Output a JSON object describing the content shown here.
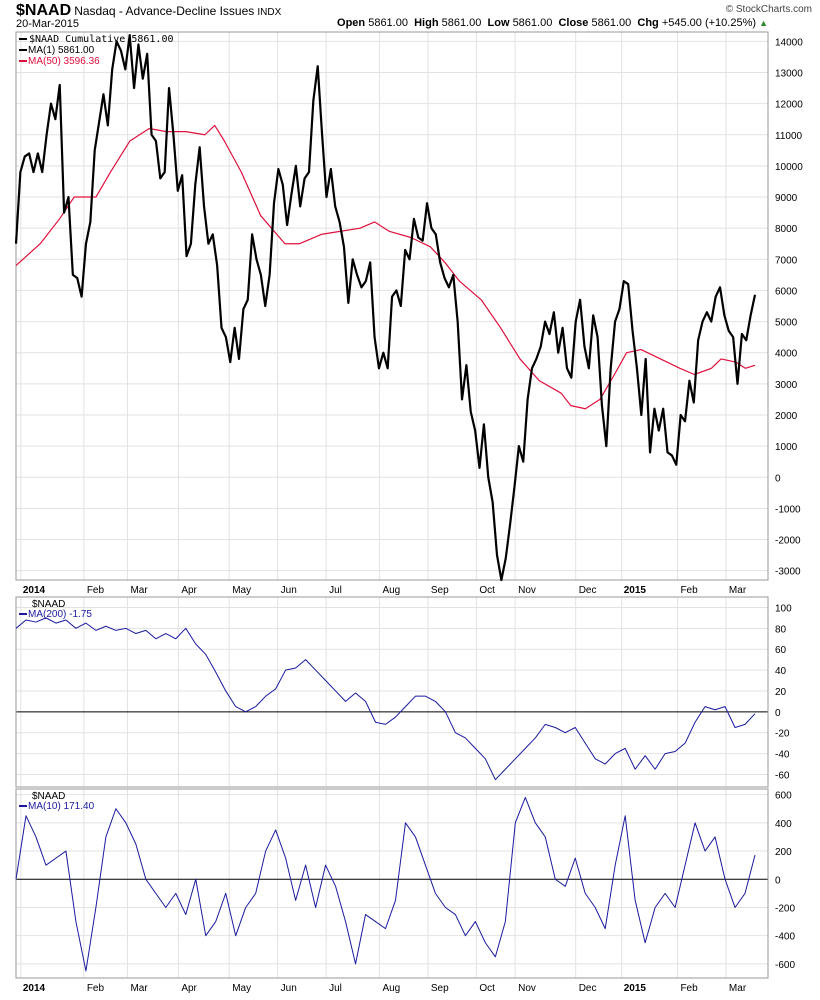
{
  "header": {
    "symbol": "$NAAD",
    "name": "Nasdaq - Advance-Decline Issues",
    "exchange": "INDX",
    "date": "20-Mar-2015",
    "copyright": "© StockCharts.com",
    "open_label": "Open",
    "open": "5861.00",
    "high_label": "High",
    "high": "5861.00",
    "low_label": "Low",
    "low": "5861.00",
    "close_label": "Close",
    "close": "5861.00",
    "chg_label": "Chg",
    "chg": "+545.00 (+10.25%)"
  },
  "colors": {
    "price": "#000000",
    "ma50": "#e0103c",
    "osc": "#1a1aa0",
    "grid": "#e2e2e2"
  },
  "chart_data": [
    {
      "type": "line",
      "title": "$NAAD Cumulative",
      "total_days": 305,
      "legend": [
        "$NAAD Cumulative 5861.00",
        "MA(1) 5861.00",
        "MA(50) 3596.36"
      ],
      "ylim": [
        -3300,
        14300
      ],
      "yticks": [
        14000,
        13000,
        12000,
        11000,
        10000,
        9000,
        8000,
        7000,
        6000,
        5000,
        4000,
        3000,
        2000,
        1000,
        0,
        -1000,
        -2000,
        -3000
      ],
      "xticks": [
        {
          "label": "2014",
          "day": 2,
          "bold": true
        },
        {
          "label": "Feb",
          "day": 28
        },
        {
          "label": "Mar",
          "day": 46
        },
        {
          "label": "Apr",
          "day": 67
        },
        {
          "label": "May",
          "day": 88
        },
        {
          "label": "Jun",
          "day": 108
        },
        {
          "label": "Jul",
          "day": 128
        },
        {
          "label": "Aug",
          "day": 150
        },
        {
          "label": "Sep",
          "day": 170
        },
        {
          "label": "Oct",
          "day": 190
        },
        {
          "label": "Nov",
          "day": 206
        },
        {
          "label": "Dec",
          "day": 231
        },
        {
          "label": "2015",
          "day": 250,
          "bold": true
        },
        {
          "label": "Feb",
          "day": 273
        },
        {
          "label": "Mar",
          "day": 293
        }
      ],
      "cumulative": [
        7500,
        9800,
        10300,
        10400,
        9800,
        10400,
        9800,
        11000,
        12000,
        11500,
        12600,
        8500,
        9000,
        6500,
        6400,
        5800,
        7500,
        8200,
        10500,
        11400,
        12300,
        11300,
        13100,
        14000,
        13700,
        13100,
        14200,
        12500,
        13900,
        12800,
        13600,
        11000,
        10800,
        9600,
        9800,
        12500,
        11000,
        9200,
        9700,
        7100,
        7500,
        9400,
        10600,
        8700,
        7500,
        7800,
        6800,
        4800,
        4500,
        3700,
        4800,
        3800,
        5400,
        5700,
        7800,
        7000,
        6500,
        5500,
        6500,
        8800,
        9900,
        9400,
        8100,
        9100,
        10000,
        8700,
        9600,
        9800,
        12100,
        13200,
        11000,
        9000,
        9900,
        8700,
        8200,
        7400,
        5600,
        7000,
        6500,
        6100,
        6300,
        6900,
        4500,
        3500,
        4000,
        3500,
        5800,
        6000,
        5500,
        7300,
        7000,
        8300,
        7700,
        7600,
        8800,
        8000,
        7800,
        6900,
        6400,
        6100,
        6500,
        5000,
        2500,
        3600,
        2100,
        1500,
        300,
        1700,
        0,
        -800,
        -2500,
        -3300,
        -2600,
        -1500,
        -300,
        1000,
        500,
        2500,
        3500,
        3800,
        4200,
        5000,
        4600,
        5300,
        4000,
        4800,
        3500,
        3200,
        5000,
        5700,
        4200,
        3500,
        5200,
        4500,
        2300,
        1000,
        3500,
        5000,
        5400,
        6300,
        6200,
        4700,
        3500,
        2000,
        3800,
        800,
        2200,
        1500,
        2200,
        800,
        700,
        400,
        2000,
        1800,
        3100,
        2400,
        4400,
        5000,
        5300,
        5000,
        5800,
        6100,
        5200,
        4700,
        4500,
        3000,
        4600,
        4400,
        5200,
        5861
      ],
      "ma50": [
        [
          0,
          6800
        ],
        [
          10,
          7500
        ],
        [
          18,
          8300
        ],
        [
          24,
          9000
        ],
        [
          33,
          9000
        ],
        [
          39,
          9800
        ],
        [
          47,
          10800
        ],
        [
          55,
          11200
        ],
        [
          62,
          11100
        ],
        [
          70,
          11100
        ],
        [
          78,
          11000
        ],
        [
          82,
          11300
        ],
        [
          86,
          10800
        ],
        [
          93,
          9800
        ],
        [
          101,
          8400
        ],
        [
          111,
          7500
        ],
        [
          117,
          7500
        ],
        [
          126,
          7800
        ],
        [
          134,
          7900
        ],
        [
          142,
          8000
        ],
        [
          148,
          8200
        ],
        [
          154,
          7900
        ],
        [
          163,
          7700
        ],
        [
          171,
          7400
        ],
        [
          177,
          6900
        ],
        [
          183,
          6300
        ],
        [
          192,
          5700
        ],
        [
          200,
          4800
        ],
        [
          208,
          3800
        ],
        [
          216,
          3100
        ],
        [
          225,
          2700
        ],
        [
          229,
          2300
        ],
        [
          235,
          2200
        ],
        [
          241,
          2500
        ],
        [
          247,
          3300
        ],
        [
          252,
          4000
        ],
        [
          258,
          4100
        ],
        [
          266,
          3800
        ],
        [
          274,
          3500
        ],
        [
          280,
          3300
        ],
        [
          287,
          3500
        ],
        [
          291,
          3800
        ],
        [
          297,
          3700
        ],
        [
          301,
          3500
        ],
        [
          305,
          3596.36
        ]
      ]
    },
    {
      "type": "line",
      "legend": [
        "$NAAD",
        "MA(200) -1.75"
      ],
      "ylim": [
        -72,
        110
      ],
      "yticks": [
        100,
        80,
        60,
        40,
        20,
        0,
        -20,
        -40,
        -60
      ],
      "values": [
        80,
        88,
        86,
        90,
        85,
        88,
        80,
        85,
        78,
        82,
        78,
        80,
        75,
        78,
        70,
        75,
        70,
        80,
        65,
        55,
        38,
        20,
        5,
        0,
        5,
        15,
        22,
        40,
        42,
        50,
        40,
        30,
        20,
        10,
        18,
        10,
        -10,
        -12,
        -5,
        5,
        15,
        15,
        10,
        0,
        -20,
        -25,
        -35,
        -45,
        -65,
        -55,
        -45,
        -35,
        -25,
        -12,
        -15,
        -20,
        -15,
        -30,
        -45,
        -50,
        -40,
        -35,
        -55,
        -42,
        -55,
        -40,
        -38,
        -30,
        -10,
        5,
        2,
        5,
        -15,
        -12,
        -1.75
      ]
    },
    {
      "type": "line",
      "legend": [
        "$NAAD",
        "MA(10) 171.40"
      ],
      "ylim": [
        -700,
        640
      ],
      "yticks": [
        600,
        400,
        200,
        0,
        -200,
        -400,
        -600
      ],
      "values": [
        0,
        450,
        300,
        100,
        150,
        200,
        -300,
        -650,
        -200,
        300,
        500,
        400,
        250,
        0,
        -100,
        -200,
        -100,
        -250,
        0,
        -400,
        -300,
        -100,
        -400,
        -200,
        -100,
        200,
        350,
        150,
        -150,
        100,
        -200,
        100,
        -50,
        -300,
        -600,
        -250,
        -300,
        -350,
        -150,
        400,
        300,
        100,
        -100,
        -200,
        -250,
        -400,
        -300,
        -450,
        -550,
        -300,
        400,
        580,
        400,
        300,
        0,
        -50,
        150,
        -100,
        -200,
        -350,
        100,
        450,
        -150,
        -450,
        -200,
        -100,
        -200,
        100,
        400,
        200,
        300,
        0,
        -200,
        -100,
        171.4
      ]
    }
  ]
}
